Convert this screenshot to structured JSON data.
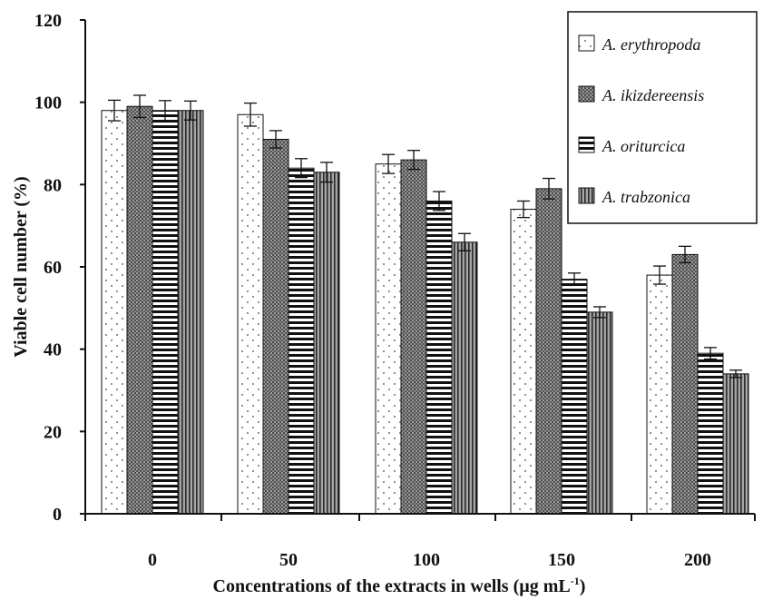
{
  "chart_data": {
    "type": "bar",
    "xlabel": "Concentrations of the extracts in wells (µg mL",
    "xlabel_sup": "-1",
    "xlabel_close": ")",
    "ylabel": "Viable cell number (%)",
    "ylim": [
      0,
      120
    ],
    "yticks": [
      0,
      20,
      40,
      60,
      80,
      100,
      120
    ],
    "categories": [
      "0",
      "50",
      "100",
      "150",
      "200"
    ],
    "legend_position": "top-right",
    "series": [
      {
        "name": "A. erythropoda",
        "pattern": "dots",
        "values": [
          98,
          97,
          85,
          74,
          58
        ],
        "errors": [
          2.5,
          2.8,
          2.3,
          2.0,
          2.2
        ]
      },
      {
        "name": "A. ikizdereensis",
        "pattern": "dense-dots",
        "values": [
          99,
          91,
          86,
          79,
          63
        ],
        "errors": [
          2.7,
          2.1,
          2.3,
          2.5,
          2.0
        ]
      },
      {
        "name": "A. oriturcica",
        "pattern": "horizontal-stripes",
        "values": [
          98,
          84,
          76,
          57,
          39
        ],
        "errors": [
          2.4,
          2.3,
          2.3,
          1.5,
          1.4
        ]
      },
      {
        "name": "A. trabzonica",
        "pattern": "vertical-stripes",
        "values": [
          98,
          83,
          66,
          49,
          34
        ],
        "errors": [
          2.3,
          2.4,
          2.1,
          1.3,
          0.9
        ]
      }
    ]
  }
}
